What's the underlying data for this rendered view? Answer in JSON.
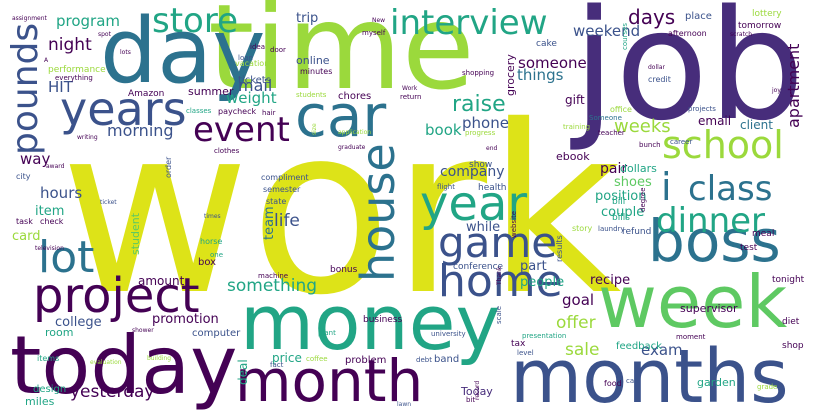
{
  "palette": {
    "yellow": "#dde318",
    "lime": "#9bd93c",
    "green": "#5ec962",
    "teal": "#21a585",
    "cyan": "#238a8d",
    "blue": "#2c728e",
    "slate": "#3b528b",
    "indigo": "#472d7b",
    "purple": "#440154",
    "mint": "#3fbc73"
  },
  "words": [
    {
      "text": "work",
      "color": "#dde318"
    },
    {
      "text": "job",
      "color": "#472d7b"
    },
    {
      "text": "time",
      "color": "#9bd93c"
    },
    {
      "text": "day",
      "color": "#2c728e"
    },
    {
      "text": "money",
      "color": "#21a585"
    },
    {
      "text": "today",
      "color": "#440154"
    },
    {
      "text": "week",
      "color": "#5ec962"
    },
    {
      "text": "months",
      "color": "#3b528b"
    },
    {
      "text": "month",
      "color": "#440154"
    },
    {
      "text": "car",
      "color": "#2c728e"
    },
    {
      "text": "boss",
      "color": "#2c728e"
    },
    {
      "text": "project",
      "color": "#440154"
    },
    {
      "text": "home",
      "color": "#3b528b"
    },
    {
      "text": "game",
      "color": "#3b528b"
    },
    {
      "text": "lot",
      "color": "#2c728e"
    },
    {
      "text": "house",
      "color": "#2c728e"
    },
    {
      "text": "year",
      "color": "#21a585"
    },
    {
      "text": "years",
      "color": "#3b528b"
    },
    {
      "text": "event",
      "color": "#440154"
    },
    {
      "text": "school",
      "color": "#9bd93c"
    },
    {
      "text": "class",
      "color": "#2c728e"
    },
    {
      "text": "i",
      "color": "#2c728e"
    },
    {
      "text": "dinner",
      "color": "#21a585"
    },
    {
      "text": "interview",
      "color": "#21a585"
    },
    {
      "text": "store",
      "color": "#21a585"
    },
    {
      "text": "pounds",
      "color": "#3b528b"
    },
    {
      "text": "night",
      "color": "#440154"
    },
    {
      "text": "HIT",
      "color": "#3b528b"
    },
    {
      "text": "program",
      "color": "#21a585"
    },
    {
      "text": "raise",
      "color": "#21a585"
    },
    {
      "text": "days",
      "color": "#440154"
    },
    {
      "text": "weekend",
      "color": "#3b528b"
    },
    {
      "text": "apartment",
      "color": "#440154"
    },
    {
      "text": "someone",
      "color": "#440154"
    },
    {
      "text": "things",
      "color": "#2c728e"
    },
    {
      "text": "weeks",
      "color": "#9bd93c"
    },
    {
      "text": "morning",
      "color": "#3b528b"
    },
    {
      "text": "mail",
      "color": "#3b528b"
    },
    {
      "text": "weight",
      "color": "#21a585"
    },
    {
      "text": "something",
      "color": "#21a585"
    },
    {
      "text": "life",
      "color": "#3b528b"
    },
    {
      "text": "team",
      "color": "#2c728e"
    },
    {
      "text": "phone",
      "color": "#3b528b"
    },
    {
      "text": "book",
      "color": "#21a585"
    },
    {
      "text": "company",
      "color": "#3b528b"
    },
    {
      "text": "position",
      "color": "#21a585"
    },
    {
      "text": "pair",
      "color": "#440154"
    },
    {
      "text": "shoes",
      "color": "#5ec962"
    },
    {
      "text": "couple",
      "color": "#21a585"
    },
    {
      "text": "hours",
      "color": "#3b528b"
    },
    {
      "text": "way",
      "color": "#440154"
    },
    {
      "text": "item",
      "color": "#21a585"
    },
    {
      "text": "card",
      "color": "#9bd93c"
    },
    {
      "text": "college",
      "color": "#3b528b"
    },
    {
      "text": "promotion",
      "color": "#440154"
    },
    {
      "text": "yesterday",
      "color": "#440154"
    },
    {
      "text": "sale",
      "color": "#9bd93c"
    },
    {
      "text": "offer",
      "color": "#9bd93c"
    },
    {
      "text": "goal",
      "color": "#440154"
    },
    {
      "text": "exam",
      "color": "#3b528b"
    },
    {
      "text": "recipe",
      "color": "#440154"
    },
    {
      "text": "people",
      "color": "#21a585"
    },
    {
      "text": "part",
      "color": "#3b528b"
    },
    {
      "text": "while",
      "color": "#3b528b"
    },
    {
      "text": "email",
      "color": "#440154"
    },
    {
      "text": "client",
      "color": "#2c728e"
    },
    {
      "text": "trip",
      "color": "#3b528b"
    },
    {
      "text": "gift",
      "color": "#440154"
    },
    {
      "text": "ebook",
      "color": "#440154"
    },
    {
      "text": "dollars",
      "color": "#21a585"
    },
    {
      "text": "amount",
      "color": "#440154"
    },
    {
      "text": "deal",
      "color": "#21a585"
    },
    {
      "text": "price",
      "color": "#21a585"
    },
    {
      "text": "Today",
      "color": "#472d7b"
    },
    {
      "text": "supervisor",
      "color": "#440154"
    },
    {
      "text": "tonight",
      "color": "#440154"
    },
    {
      "text": "online",
      "color": "#3b528b"
    },
    {
      "text": "chores",
      "color": "#440154"
    },
    {
      "text": "summer",
      "color": "#440154"
    },
    {
      "text": "tickets",
      "color": "#3b528b"
    },
    {
      "text": "Amazon",
      "color": "#440154"
    },
    {
      "text": "performance",
      "color": "#9bd93c"
    },
    {
      "text": "grocery",
      "color": "#440154"
    },
    {
      "text": "business",
      "color": "#440154"
    },
    {
      "text": "computer",
      "color": "#3b528b"
    },
    {
      "text": "conference",
      "color": "#3b528b"
    },
    {
      "text": "feedback",
      "color": "#21a585"
    },
    {
      "text": "garden",
      "color": "#21a585"
    },
    {
      "text": "problem",
      "color": "#440154"
    },
    {
      "text": "bonus",
      "color": "#440154"
    },
    {
      "text": "student",
      "color": "#5ec962"
    },
    {
      "text": "room",
      "color": "#21a585"
    },
    {
      "text": "miles",
      "color": "#21a585"
    },
    {
      "text": "design",
      "color": "#21a585"
    },
    {
      "text": "box",
      "color": "#440154"
    },
    {
      "text": "band",
      "color": "#3b528b"
    },
    {
      "text": "tax",
      "color": "#440154"
    },
    {
      "text": "bill",
      "color": "#21a585"
    },
    {
      "text": "bills",
      "color": "#21a585"
    },
    {
      "text": "refund",
      "color": "#3b528b"
    },
    {
      "text": "meal",
      "color": "#440154"
    },
    {
      "text": "test",
      "color": "#440154"
    },
    {
      "text": "diet",
      "color": "#440154"
    },
    {
      "text": "shop",
      "color": "#440154"
    },
    {
      "text": "lottery",
      "color": "#9bd93c"
    },
    {
      "text": "place",
      "color": "#3b528b"
    },
    {
      "text": "tomorrow",
      "color": "#440154"
    },
    {
      "text": "afternoon",
      "color": "#440154"
    },
    {
      "text": "cake",
      "color": "#3b528b"
    },
    {
      "text": "office",
      "color": "#9bd93c"
    },
    {
      "text": "credit",
      "color": "#3b528b"
    },
    {
      "text": "show",
      "color": "#3b528b"
    },
    {
      "text": "health",
      "color": "#3b528b"
    },
    {
      "text": "city",
      "color": "#3b528b"
    },
    {
      "text": "task",
      "color": "#440154"
    },
    {
      "text": "check",
      "color": "#440154"
    },
    {
      "text": "clothes",
      "color": "#440154"
    },
    {
      "text": "compliment",
      "color": "#3b528b"
    },
    {
      "text": "semester",
      "color": "#3b528b"
    },
    {
      "text": "state",
      "color": "#3b528b"
    },
    {
      "text": "flight",
      "color": "#3b528b"
    },
    {
      "text": "horse",
      "color": "#21a585"
    },
    {
      "text": "one",
      "color": "#21a585"
    },
    {
      "text": "order",
      "color": "#3b528b"
    },
    {
      "text": "paycheck",
      "color": "#440154"
    },
    {
      "text": "classes",
      "color": "#21a585"
    },
    {
      "text": "hair",
      "color": "#440154"
    },
    {
      "text": "vacation",
      "color": "#9bd93c"
    },
    {
      "text": "minutes",
      "color": "#440154"
    },
    {
      "text": "story",
      "color": "#9bd93c"
    },
    {
      "text": "results",
      "color": "#3b528b"
    },
    {
      "text": "website",
      "color": "#440154"
    },
    {
      "text": "progress",
      "color": "#9bd93c"
    },
    {
      "text": "machine",
      "color": "#440154"
    },
    {
      "text": "plant",
      "color": "#21a585"
    },
    {
      "text": "university",
      "color": "#3b528b"
    },
    {
      "text": "presentation",
      "color": "#21a585"
    },
    {
      "text": "coffee",
      "color": "#9bd93c"
    },
    {
      "text": "fact",
      "color": "#3b528b"
    },
    {
      "text": "items",
      "color": "#21a585"
    },
    {
      "text": "bit",
      "color": "#440154"
    },
    {
      "text": "food",
      "color": "#440154"
    },
    {
      "text": "call",
      "color": "#3b528b"
    },
    {
      "text": "grade",
      "color": "#9bd93c"
    },
    {
      "text": "moment",
      "color": "#440154"
    },
    {
      "text": "level",
      "color": "#3b528b"
    },
    {
      "text": "scale",
      "color": "#3b528b"
    },
    {
      "text": "debt",
      "color": "#3b528b"
    },
    {
      "text": "courses",
      "color": "#21a585"
    },
    {
      "text": "bunch",
      "color": "#440154"
    },
    {
      "text": "career",
      "color": "#3b528b"
    },
    {
      "text": "laundry",
      "color": "#3b528b"
    },
    {
      "text": "teacher",
      "color": "#440154"
    },
    {
      "text": "degree",
      "color": "#440154"
    },
    {
      "text": "projects",
      "color": "#3b528b"
    },
    {
      "text": "training",
      "color": "#9bd93c"
    },
    {
      "text": "Someone",
      "color": "#2c728e"
    },
    {
      "text": "return",
      "color": "#440154"
    },
    {
      "text": "students",
      "color": "#9bd93c"
    },
    {
      "text": "myself",
      "color": "#440154"
    },
    {
      "text": "shopping",
      "color": "#440154"
    },
    {
      "text": "door",
      "color": "#440154"
    },
    {
      "text": "idea",
      "color": "#440154"
    },
    {
      "text": "loan",
      "color": "#3b528b"
    },
    {
      "text": "everything",
      "color": "#440154"
    },
    {
      "text": "assignment",
      "color": "#440154"
    },
    {
      "text": "spot",
      "color": "#440154"
    },
    {
      "text": "lots",
      "color": "#440154"
    },
    {
      "text": "writing",
      "color": "#440154"
    },
    {
      "text": "award",
      "color": "#440154"
    },
    {
      "text": "ticket",
      "color": "#3b528b"
    },
    {
      "text": "television",
      "color": "#440154"
    },
    {
      "text": "times",
      "color": "#3b528b"
    },
    {
      "text": "evaluation",
      "color": "#9bd93c"
    },
    {
      "text": "building",
      "color": "#9bd93c"
    },
    {
      "text": "shower",
      "color": "#440154"
    },
    {
      "text": "size",
      "color": "#9bd93c"
    },
    {
      "text": "graduate",
      "color": "#440154"
    },
    {
      "text": "application",
      "color": "#9bd93c"
    },
    {
      "text": "record",
      "color": "#440154"
    },
    {
      "text": "lawn",
      "color": "#3b528b"
    },
    {
      "text": "scratch",
      "color": "#440154"
    },
    {
      "text": "dollar",
      "color": "#440154"
    },
    {
      "text": "New",
      "color": "#440154"
    },
    {
      "text": "end",
      "color": "#440154"
    },
    {
      "text": "A",
      "color": "#440154"
    },
    {
      "text": "Work",
      "color": "#440154"
    },
    {
      "text": "Thank",
      "color": "#440154"
    },
    {
      "text": "joy",
      "color": "#440154"
    }
  ]
}
